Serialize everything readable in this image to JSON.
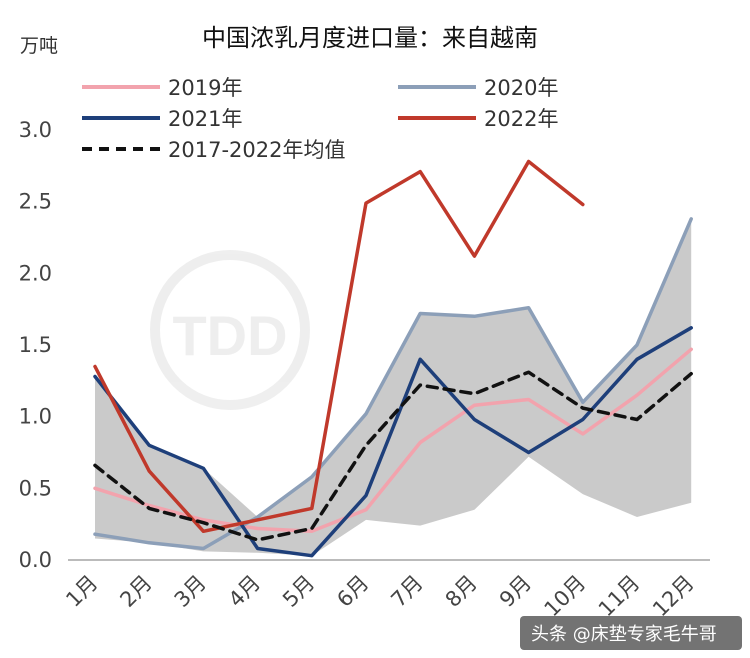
{
  "chart_data": {
    "type": "line",
    "title": "中国浓乳月度进口量：来自越南",
    "ylabel": "万吨",
    "ylim": [
      0,
      3.0
    ],
    "yticks": [
      "0.0",
      "0.5",
      "1.0",
      "1.5",
      "2.0",
      "2.5",
      "3.0"
    ],
    "categories": [
      "1月",
      "2月",
      "3月",
      "4月",
      "5月",
      "6月",
      "7月",
      "8月",
      "9月",
      "10月",
      "11月",
      "12月"
    ],
    "series": [
      {
        "name": "2019年",
        "color": "#f2a3ad",
        "dash": false,
        "values": [
          0.5,
          0.38,
          0.28,
          0.22,
          0.2,
          0.35,
          0.82,
          1.08,
          1.12,
          0.88,
          1.15,
          1.47
        ]
      },
      {
        "name": "2020年",
        "color": "#8c9fb8",
        "dash": false,
        "values": [
          0.18,
          0.12,
          0.08,
          0.3,
          0.58,
          1.02,
          1.72,
          1.7,
          1.76,
          1.1,
          1.5,
          2.38
        ]
      },
      {
        "name": "2021年",
        "color": "#1e3f7a",
        "dash": false,
        "values": [
          1.28,
          0.8,
          0.64,
          0.08,
          0.03,
          0.45,
          1.4,
          0.98,
          0.75,
          0.98,
          1.4,
          1.62
        ]
      },
      {
        "name": "2022年",
        "color": "#c0392b",
        "dash": false,
        "values": [
          1.35,
          0.62,
          0.2,
          null,
          0.36,
          2.49,
          2.71,
          2.12,
          2.78,
          2.48,
          null,
          null
        ]
      },
      {
        "name": "2017-2022年均值",
        "color": "#111111",
        "dash": true,
        "values": [
          0.66,
          0.36,
          0.26,
          0.14,
          0.22,
          0.8,
          1.22,
          1.16,
          1.31,
          1.06,
          0.98,
          1.3
        ]
      }
    ],
    "range_band": {
      "color": "#c4c4c4",
      "upper": [
        1.28,
        0.8,
        0.64,
        0.3,
        0.58,
        1.02,
        1.72,
        1.7,
        1.76,
        1.1,
        1.5,
        2.38
      ],
      "lower": [
        0.15,
        0.12,
        0.06,
        0.05,
        0.03,
        0.28,
        0.24,
        0.35,
        0.72,
        0.46,
        0.3,
        0.4
      ]
    },
    "legend_placement": "top",
    "grid": false
  },
  "credits": {
    "watermark": "TDD",
    "source_caption": "头条 @床垫专家毛牛哥"
  }
}
